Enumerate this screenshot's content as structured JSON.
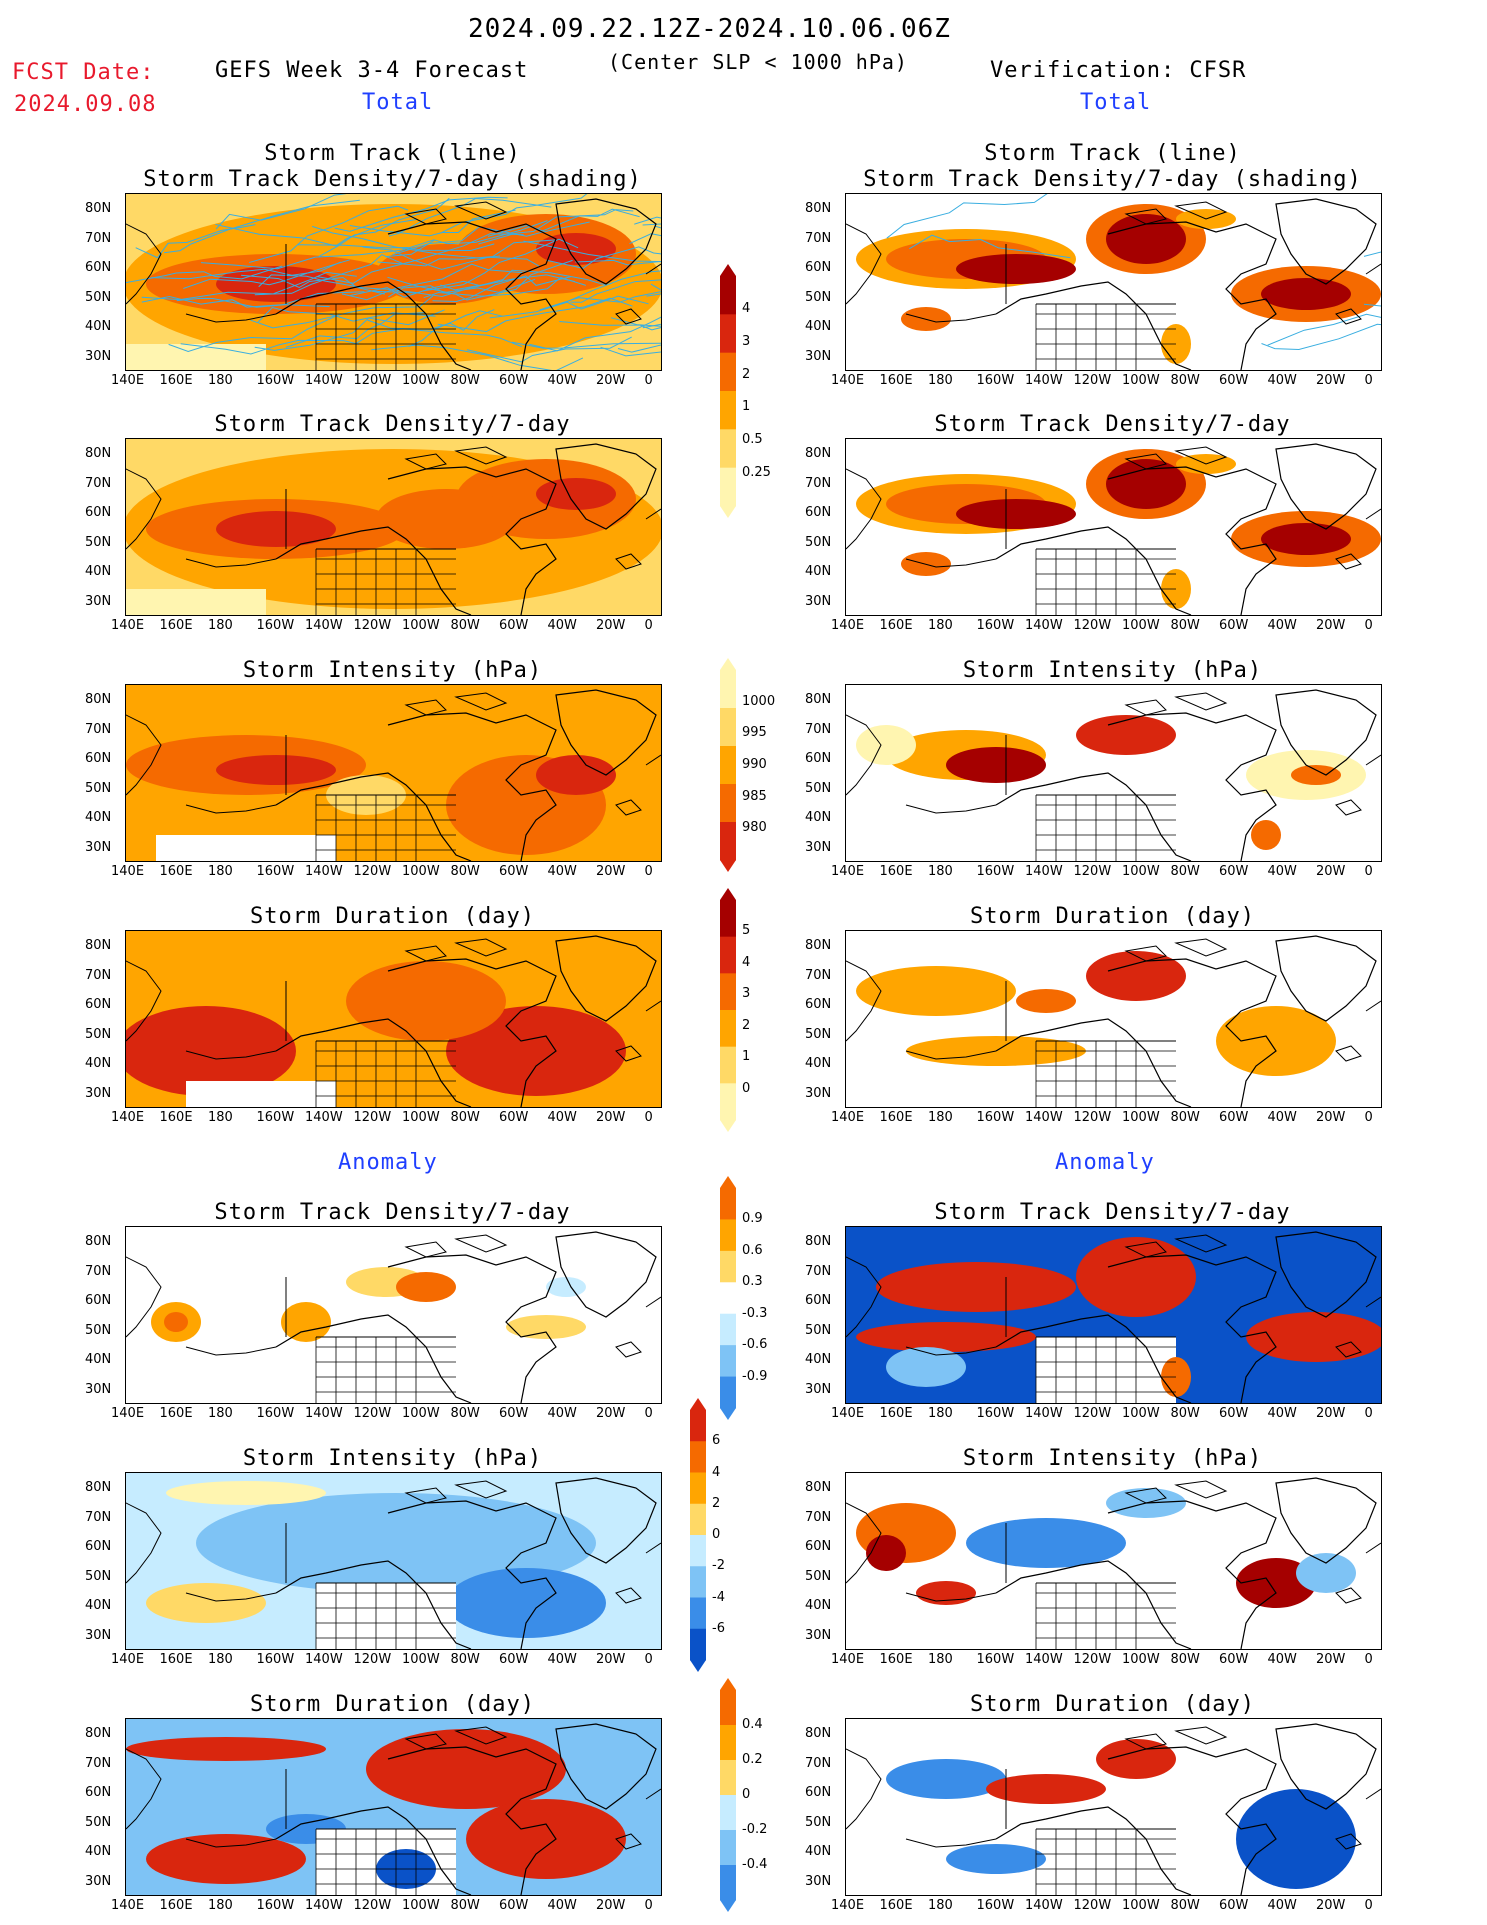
{
  "header": {
    "date_range": "2024.09.22.12Z-2024.10.06.06Z",
    "fcst_label": "FCST Date:",
    "fcst_date": "2024.09.08",
    "forecast_title": "GEFS Week 3-4 Forecast",
    "criterion": "(Center SLP < 1000 hPa)",
    "verification": "Verification: CFSR"
  },
  "sections": {
    "total_left": "Total",
    "total_right": "Total",
    "anomaly_left": "Anomaly",
    "anomaly_right": "Anomaly"
  },
  "titles": {
    "track_line": "Storm Track (line)",
    "track_shading": "Storm Track Density/7-day (shading)",
    "density": "Storm Track Density/7-day",
    "intensity": "Storm Intensity (hPa)",
    "duration": "Storm Duration (day)"
  },
  "axes": {
    "lat": [
      "80N",
      "70N",
      "60N",
      "50N",
      "40N",
      "30N"
    ],
    "lon": [
      "140E",
      "160E",
      "180",
      "160W",
      "140W",
      "120W",
      "100W",
      "80W",
      "60W",
      "40W",
      "20W",
      "0"
    ]
  },
  "colorbars": {
    "density_total": [
      "4",
      "3",
      "2",
      "1",
      "0.5",
      "0.25"
    ],
    "intensity_total": [
      "1000",
      "995",
      "990",
      "985",
      "980"
    ],
    "duration_total": [
      "5",
      "4",
      "3",
      "2",
      "1",
      "0"
    ],
    "density_anom": [
      "0.9",
      "0.6",
      "0.3",
      "-0.3",
      "-0.6",
      "-0.9"
    ],
    "intensity_anom": [
      "6",
      "4",
      "2",
      "0",
      "-2",
      "-4",
      "-6"
    ],
    "duration_anom": [
      "0.4",
      "0.2",
      "0",
      "-0.2",
      "-0.4"
    ]
  },
  "colors": {
    "warm": [
      "#fff5b0",
      "#ffd966",
      "#ffa500",
      "#f56a00",
      "#d9260e",
      "#a50000"
    ],
    "cool": [
      "#c6ecff",
      "#7ec3f5",
      "#3a8de8",
      "#0a52c8"
    ],
    "track_line": "#3aaee0"
  }
}
